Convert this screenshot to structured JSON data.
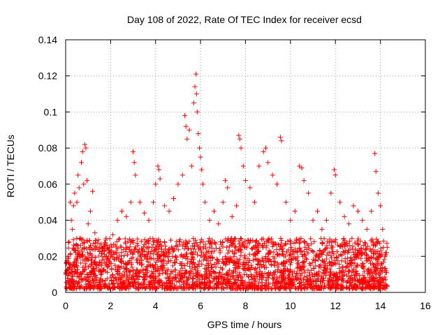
{
  "chart_data": {
    "type": "scatter",
    "title": "Day 108 of 2022, Rate Of TEC Index for receiver ecsd",
    "xlabel": "GPS time / hours",
    "ylabel": "ROTI / TECUs",
    "xlim": [
      0,
      16
    ],
    "ylim": [
      0,
      0.14
    ],
    "x_ticks": [
      "0",
      "2",
      "4",
      "6",
      "8",
      "10",
      "12",
      "14",
      "16"
    ],
    "y_ticks": [
      "0",
      "0.02",
      "0.04",
      "0.06",
      "0.08",
      "0.1",
      "0.12",
      "0.14"
    ],
    "grid": true,
    "marker": "+",
    "series_color": "#ff0000",
    "points": [
      [
        0.05,
        0.012
      ],
      [
        0.1,
        0.02
      ],
      [
        0.15,
        0.028
      ],
      [
        0.2,
        0.05
      ],
      [
        0.25,
        0.04
      ],
      [
        0.3,
        0.035
      ],
      [
        0.35,
        0.048
      ],
      [
        0.4,
        0.055
      ],
      [
        0.45,
        0.015
      ],
      [
        0.5,
        0.05
      ],
      [
        0.55,
        0.065
      ],
      [
        0.6,
        0.058
      ],
      [
        0.65,
        0.03
      ],
      [
        0.7,
        0.072
      ],
      [
        0.75,
        0.078
      ],
      [
        0.8,
        0.06
      ],
      [
        0.85,
        0.082
      ],
      [
        0.9,
        0.08
      ],
      [
        0.95,
        0.062
      ],
      [
        1.0,
        0.038
      ],
      [
        1.1,
        0.045
      ],
      [
        1.2,
        0.056
      ],
      [
        1.3,
        0.033
      ],
      [
        1.5,
        0.025
      ],
      [
        1.8,
        0.03
      ],
      [
        2.0,
        0.02
      ],
      [
        2.1,
        0.032
      ],
      [
        2.3,
        0.04
      ],
      [
        2.5,
        0.045
      ],
      [
        2.7,
        0.042
      ],
      [
        2.9,
        0.05
      ],
      [
        3.0,
        0.078
      ],
      [
        3.05,
        0.072
      ],
      [
        3.1,
        0.065
      ],
      [
        3.3,
        0.05
      ],
      [
        3.5,
        0.044
      ],
      [
        3.7,
        0.04
      ],
      [
        3.9,
        0.05
      ],
      [
        4.0,
        0.06
      ],
      [
        4.1,
        0.07
      ],
      [
        4.15,
        0.068
      ],
      [
        4.2,
        0.063
      ],
      [
        4.4,
        0.048
      ],
      [
        4.6,
        0.045
      ],
      [
        4.8,
        0.052
      ],
      [
        5.0,
        0.06
      ],
      [
        5.2,
        0.065
      ],
      [
        5.3,
        0.098
      ],
      [
        5.35,
        0.092
      ],
      [
        5.4,
        0.085
      ],
      [
        5.5,
        0.09
      ],
      [
        5.6,
        0.07
      ],
      [
        5.7,
        0.105
      ],
      [
        5.75,
        0.114
      ],
      [
        5.8,
        0.121
      ],
      [
        5.82,
        0.11
      ],
      [
        5.85,
        0.1
      ],
      [
        5.9,
        0.088
      ],
      [
        5.95,
        0.08
      ],
      [
        6.0,
        0.075
      ],
      [
        6.05,
        0.068
      ],
      [
        6.1,
        0.06
      ],
      [
        6.2,
        0.05
      ],
      [
        6.4,
        0.04
      ],
      [
        6.6,
        0.045
      ],
      [
        6.8,
        0.038
      ],
      [
        7.0,
        0.05
      ],
      [
        7.1,
        0.062
      ],
      [
        7.2,
        0.058
      ],
      [
        7.4,
        0.042
      ],
      [
        7.6,
        0.048
      ],
      [
        7.7,
        0.087
      ],
      [
        7.75,
        0.085
      ],
      [
        7.8,
        0.08
      ],
      [
        7.9,
        0.07
      ],
      [
        8.0,
        0.062
      ],
      [
        8.2,
        0.058
      ],
      [
        8.4,
        0.05
      ],
      [
        8.6,
        0.07
      ],
      [
        8.8,
        0.078
      ],
      [
        8.9,
        0.08
      ],
      [
        9.0,
        0.072
      ],
      [
        9.2,
        0.065
      ],
      [
        9.4,
        0.06
      ],
      [
        9.55,
        0.086
      ],
      [
        9.6,
        0.084
      ],
      [
        9.8,
        0.05
      ],
      [
        10.0,
        0.04
      ],
      [
        10.2,
        0.045
      ],
      [
        10.4,
        0.07
      ],
      [
        10.5,
        0.069
      ],
      [
        10.6,
        0.062
      ],
      [
        10.8,
        0.055
      ],
      [
        11.0,
        0.04
      ],
      [
        11.2,
        0.045
      ],
      [
        11.4,
        0.035
      ],
      [
        11.6,
        0.04
      ],
      [
        11.8,
        0.055
      ],
      [
        11.95,
        0.068
      ],
      [
        12.0,
        0.065
      ],
      [
        12.2,
        0.05
      ],
      [
        12.4,
        0.042
      ],
      [
        12.6,
        0.038
      ],
      [
        12.8,
        0.048
      ],
      [
        13.0,
        0.045
      ],
      [
        13.2,
        0.04
      ],
      [
        13.4,
        0.035
      ],
      [
        13.6,
        0.045
      ],
      [
        13.75,
        0.077
      ],
      [
        13.8,
        0.067
      ],
      [
        13.9,
        0.055
      ],
      [
        14.0,
        0.048
      ],
      [
        14.1,
        0.035
      ],
      [
        14.2,
        0.02
      ],
      [
        14.3,
        0.025
      ]
    ],
    "band": {
      "x_start": 0.0,
      "x_end": 14.3,
      "y_min": 0.002,
      "y_max": 0.03,
      "count": 2600
    }
  }
}
